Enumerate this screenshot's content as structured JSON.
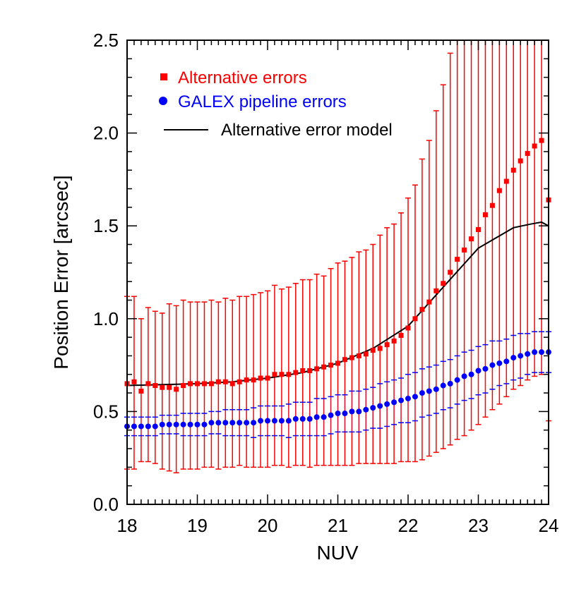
{
  "chart_data": {
    "type": "scatter",
    "xlabel": "NUV",
    "ylabel": "Position Error [arcsec]",
    "xlim": [
      18,
      24
    ],
    "ylim": [
      0.0,
      2.5
    ],
    "x_ticks": [
      "18",
      "19",
      "20",
      "21",
      "22",
      "23",
      "24"
    ],
    "y_ticks": [
      "0.0",
      "0.5",
      "1.0",
      "1.5",
      "2.0",
      "2.5"
    ],
    "grid": false,
    "legend_position": "top-left",
    "x": [
      18.0,
      18.1,
      18.2,
      18.3,
      18.4,
      18.5,
      18.6,
      18.7,
      18.8,
      18.9,
      19.0,
      19.1,
      19.2,
      19.3,
      19.4,
      19.5,
      19.6,
      19.7,
      19.8,
      19.9,
      20.0,
      20.1,
      20.2,
      20.3,
      20.4,
      20.5,
      20.6,
      20.7,
      20.8,
      20.9,
      21.0,
      21.1,
      21.2,
      21.3,
      21.4,
      21.5,
      21.6,
      21.7,
      21.8,
      21.9,
      22.0,
      22.1,
      22.2,
      22.3,
      22.4,
      22.5,
      22.6,
      22.7,
      22.8,
      22.9,
      23.0,
      23.1,
      23.2,
      23.3,
      23.4,
      23.5,
      23.6,
      23.7,
      23.8,
      23.9,
      24.0
    ],
    "series": [
      {
        "name": "Alternative errors",
        "color": "#ff0000",
        "marker": "square",
        "values": [
          0.65,
          0.66,
          0.61,
          0.65,
          0.64,
          0.63,
          0.63,
          0.62,
          0.64,
          0.65,
          0.65,
          0.65,
          0.65,
          0.66,
          0.66,
          0.65,
          0.66,
          0.67,
          0.67,
          0.68,
          0.68,
          0.7,
          0.7,
          0.7,
          0.71,
          0.72,
          0.72,
          0.73,
          0.74,
          0.75,
          0.76,
          0.78,
          0.79,
          0.8,
          0.81,
          0.83,
          0.84,
          0.86,
          0.88,
          0.91,
          0.95,
          1.0,
          1.05,
          1.09,
          1.15,
          1.19,
          1.25,
          1.32,
          1.37,
          1.43,
          1.48,
          1.56,
          1.61,
          1.69,
          1.74,
          1.8,
          1.85,
          1.89,
          1.93,
          1.96,
          1.64
        ],
        "error_lower": [
          0.19,
          0.19,
          0.23,
          0.23,
          0.22,
          0.19,
          0.18,
          0.17,
          0.19,
          0.19,
          0.19,
          0.2,
          0.2,
          0.19,
          0.2,
          0.2,
          0.21,
          0.2,
          0.2,
          0.2,
          0.2,
          0.21,
          0.21,
          0.2,
          0.21,
          0.21,
          0.2,
          0.21,
          0.21,
          0.21,
          0.21,
          0.21,
          0.21,
          0.22,
          0.22,
          0.22,
          0.22,
          0.22,
          0.22,
          0.23,
          0.23,
          0.23,
          0.24,
          0.26,
          0.28,
          0.3,
          0.32,
          0.35,
          0.37,
          0.4,
          0.43,
          0.47,
          0.51,
          0.54,
          0.58,
          0.62,
          0.64,
          0.67,
          0.69,
          0.7,
          0.45
        ],
        "error_upper": [
          1.12,
          1.12,
          1.0,
          1.06,
          1.04,
          1.03,
          1.08,
          1.07,
          1.1,
          1.09,
          1.09,
          1.09,
          1.1,
          1.09,
          1.11,
          1.1,
          1.12,
          1.12,
          1.13,
          1.14,
          1.15,
          1.18,
          1.16,
          1.17,
          1.19,
          1.21,
          1.21,
          1.24,
          1.23,
          1.27,
          1.3,
          1.31,
          1.33,
          1.36,
          1.37,
          1.4,
          1.45,
          1.49,
          1.51,
          1.57,
          1.65,
          1.72,
          1.86,
          1.96,
          2.12,
          2.26,
          2.43,
          null,
          null,
          null,
          null,
          null,
          null,
          null,
          null,
          null,
          null,
          null,
          null,
          null,
          null
        ]
      },
      {
        "name": "GALEX pipeline errors",
        "color": "#0000ff",
        "marker": "circle",
        "values": [
          0.42,
          0.42,
          0.42,
          0.42,
          0.42,
          0.43,
          0.43,
          0.43,
          0.43,
          0.43,
          0.43,
          0.43,
          0.44,
          0.44,
          0.44,
          0.44,
          0.44,
          0.44,
          0.44,
          0.45,
          0.45,
          0.45,
          0.45,
          0.45,
          0.46,
          0.46,
          0.46,
          0.47,
          0.47,
          0.48,
          0.49,
          0.49,
          0.5,
          0.5,
          0.51,
          0.52,
          0.53,
          0.54,
          0.55,
          0.56,
          0.57,
          0.58,
          0.6,
          0.61,
          0.62,
          0.64,
          0.65,
          0.67,
          0.69,
          0.7,
          0.72,
          0.73,
          0.75,
          0.76,
          0.77,
          0.79,
          0.8,
          0.81,
          0.82,
          0.82,
          0.82
        ],
        "error": [
          0.05,
          0.05,
          0.05,
          0.05,
          0.05,
          0.05,
          0.05,
          0.05,
          0.06,
          0.06,
          0.06,
          0.06,
          0.06,
          0.06,
          0.07,
          0.07,
          0.07,
          0.07,
          0.08,
          0.08,
          0.08,
          0.08,
          0.08,
          0.09,
          0.09,
          0.09,
          0.09,
          0.1,
          0.1,
          0.1,
          0.1,
          0.1,
          0.11,
          0.11,
          0.11,
          0.11,
          0.12,
          0.12,
          0.12,
          0.12,
          0.13,
          0.13,
          0.13,
          0.13,
          0.13,
          0.13,
          0.13,
          0.13,
          0.13,
          0.13,
          0.13,
          0.13,
          0.13,
          0.12,
          0.12,
          0.12,
          0.12,
          0.11,
          0.11,
          0.11,
          0.11
        ]
      },
      {
        "name": "Alternative error model",
        "color": "#000000",
        "marker": "line",
        "x": [
          18.0,
          18.5,
          19.0,
          19.5,
          20.0,
          20.5,
          21.0,
          21.5,
          22.0,
          22.5,
          23.0,
          23.5,
          23.75,
          23.9,
          24.0
        ],
        "values": [
          0.64,
          0.645,
          0.65,
          0.66,
          0.68,
          0.71,
          0.76,
          0.84,
          0.96,
          1.17,
          1.38,
          1.49,
          1.51,
          1.52,
          1.5
        ]
      }
    ]
  }
}
